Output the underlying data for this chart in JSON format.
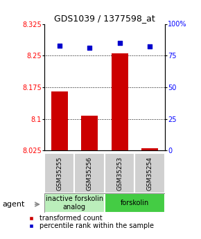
{
  "title": "GDS1039 / 1377598_at",
  "samples": [
    "GSM35255",
    "GSM35256",
    "GSM35253",
    "GSM35254"
  ],
  "bar_values": [
    8.165,
    8.108,
    8.255,
    8.03
  ],
  "percentile_values": [
    83,
    81,
    85,
    82
  ],
  "ylim_left": [
    8.025,
    8.325
  ],
  "ylim_right": [
    0,
    100
  ],
  "yticks_left": [
    8.025,
    8.1,
    8.175,
    8.25,
    8.325
  ],
  "ytick_labels_left": [
    "8.025",
    "8.1",
    "8.175",
    "8.25",
    "8.325"
  ],
  "yticks_right": [
    0,
    25,
    50,
    75,
    100
  ],
  "ytick_labels_right": [
    "0",
    "25",
    "50",
    "75",
    "100%"
  ],
  "hlines": [
    8.1,
    8.175,
    8.25
  ],
  "bar_color": "#cc0000",
  "percentile_color": "#0000cc",
  "bar_width": 0.55,
  "groups": [
    {
      "label": "inactive forskolin\nanalog",
      "indices": [
        0,
        1
      ],
      "color": "#bbeebb"
    },
    {
      "label": "forskolin",
      "indices": [
        2,
        3
      ],
      "color": "#44cc44"
    }
  ],
  "group_row_label": "agent",
  "legend_bar_label": "transformed count",
  "legend_pct_label": "percentile rank within the sample",
  "title_fontsize": 9,
  "tick_fontsize": 7,
  "sample_fontsize": 6.5,
  "group_fontsize": 7,
  "legend_fontsize": 7
}
